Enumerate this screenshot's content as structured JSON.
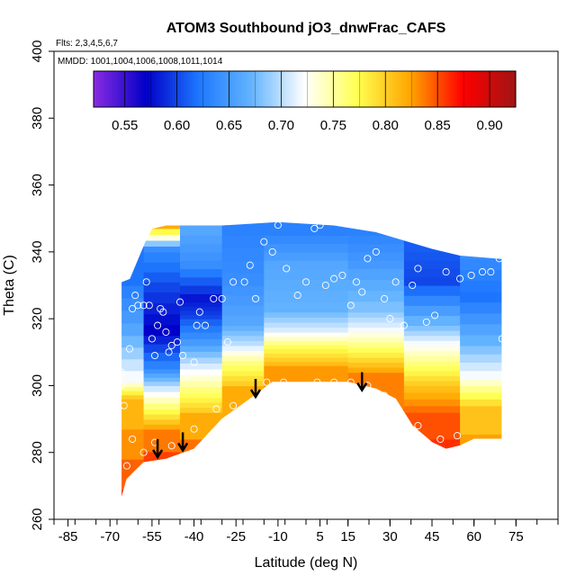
{
  "chart_data": {
    "type": "heatmap",
    "title": "ATOM3 Southbound jO3_dnwFrac_CAFS",
    "flights_note": "Flts: 2,3,4,5,6,7",
    "date_note": "MMDD: 1001,1004,1006,1008,1011,1014",
    "xlabel": "Latitude (deg N)",
    "ylabel": "Theta (C)",
    "xlim": [
      -90,
      90
    ],
    "ylim": [
      260,
      400
    ],
    "x_ticks": [
      -85,
      -70,
      -55,
      -40,
      -25,
      -10,
      5,
      15,
      30,
      45,
      60,
      75
    ],
    "x_tick_labels": [
      "-85",
      "-70",
      "-55",
      "-40",
      "-25",
      "-10",
      "5",
      "15",
      "30",
      "45",
      "60",
      "75"
    ],
    "y_ticks": [
      260,
      280,
      300,
      320,
      340,
      360,
      380,
      400
    ],
    "y_tick_labels": [
      "260",
      "280",
      "300",
      "320",
      "340",
      "360",
      "380",
      "400"
    ],
    "colorbar": {
      "range": [
        0.52,
        0.925
      ],
      "ticks": [
        0.55,
        0.6,
        0.65,
        0.7,
        0.75,
        0.8,
        0.85,
        0.9
      ],
      "tick_labels": [
        "0.55",
        "0.60",
        "0.65",
        "0.70",
        "0.75",
        "0.80",
        "0.85",
        "0.90"
      ],
      "colors": [
        "#8a2be2",
        "#0000c8",
        "#1e78ff",
        "#64b4ff",
        "#ffffff",
        "#ffff50",
        "#ffa500",
        "#ff0000",
        "#a01414"
      ]
    },
    "domain": {
      "top": [
        [
          -66,
          331
        ],
        [
          -63,
          332
        ],
        [
          -61,
          336
        ],
        [
          -57,
          344
        ],
        [
          -55,
          347
        ],
        [
          -50,
          348
        ],
        [
          -30,
          348
        ],
        [
          -10,
          349
        ],
        [
          10,
          348
        ],
        [
          25,
          346
        ],
        [
          45,
          341
        ],
        [
          55,
          339
        ],
        [
          70,
          338
        ]
      ],
      "bottom": [
        [
          -66,
          266
        ],
        [
          -64,
          272
        ],
        [
          -58,
          277
        ],
        [
          -50,
          278
        ],
        [
          -40,
          281
        ],
        [
          -30,
          290
        ],
        [
          -20,
          296
        ],
        [
          -12,
          301
        ],
        [
          0,
          301
        ],
        [
          15,
          301
        ],
        [
          25,
          299
        ],
        [
          32,
          296
        ],
        [
          38,
          288
        ],
        [
          45,
          283
        ],
        [
          50,
          281
        ],
        [
          55,
          282
        ],
        [
          60,
          284
        ],
        [
          70,
          284
        ]
      ]
    },
    "field_bands": [
      {
        "lat": [
          -66,
          -58
        ],
        "levels": [
          [
            290,
            0.86
          ],
          [
            296,
            0.8
          ],
          [
            301,
            0.72
          ],
          [
            315,
            0.66
          ],
          [
            330,
            0.62
          ]
        ]
      },
      {
        "lat": [
          -58,
          -45
        ],
        "levels": [
          [
            279,
            0.89
          ],
          [
            287,
            0.82
          ],
          [
            293,
            0.76
          ],
          [
            300,
            0.69
          ],
          [
            305,
            0.63
          ],
          [
            315,
            0.57
          ],
          [
            328,
            0.6
          ],
          [
            340,
            0.64
          ],
          [
            347,
            0.82
          ]
        ]
      },
      {
        "lat": [
          -45,
          -30
        ],
        "levels": [
          [
            282,
            0.88
          ],
          [
            292,
            0.8
          ],
          [
            298,
            0.76
          ],
          [
            305,
            0.71
          ],
          [
            312,
            0.65
          ],
          [
            320,
            0.6
          ],
          [
            325,
            0.58
          ],
          [
            335,
            0.64
          ],
          [
            345,
            0.66
          ]
        ]
      },
      {
        "lat": [
          -30,
          -15
        ],
        "levels": [
          [
            293,
            0.88
          ],
          [
            300,
            0.8
          ],
          [
            306,
            0.76
          ],
          [
            312,
            0.7
          ],
          [
            318,
            0.66
          ],
          [
            330,
            0.64
          ],
          [
            345,
            0.63
          ]
        ]
      },
      {
        "lat": [
          -15,
          15
        ],
        "levels": [
          [
            301,
            0.88
          ],
          [
            306,
            0.81
          ],
          [
            311,
            0.77
          ],
          [
            316,
            0.71
          ],
          [
            322,
            0.67
          ],
          [
            335,
            0.66
          ],
          [
            345,
            0.63
          ]
        ]
      },
      {
        "lat": [
          15,
          35
        ],
        "levels": [
          [
            297,
            0.88
          ],
          [
            304,
            0.82
          ],
          [
            310,
            0.77
          ],
          [
            316,
            0.72
          ],
          [
            322,
            0.68
          ],
          [
            335,
            0.65
          ],
          [
            345,
            0.63
          ]
        ]
      },
      {
        "lat": [
          35,
          55
        ],
        "levels": [
          [
            283,
            0.88
          ],
          [
            292,
            0.84
          ],
          [
            300,
            0.8
          ],
          [
            306,
            0.76
          ],
          [
            312,
            0.72
          ],
          [
            318,
            0.67
          ],
          [
            330,
            0.6
          ],
          [
            340,
            0.61
          ]
        ]
      },
      {
        "lat": [
          55,
          70
        ],
        "levels": [
          [
            285,
            0.86
          ],
          [
            294,
            0.79
          ],
          [
            302,
            0.72
          ],
          [
            312,
            0.67
          ],
          [
            325,
            0.62
          ],
          [
            338,
            0.64
          ]
        ]
      }
    ],
    "arrows": [
      [
        -53,
        284
      ],
      [
        -44,
        286
      ],
      [
        -18,
        302
      ],
      [
        20,
        304
      ]
    ],
    "samples": [
      [
        -66,
        300
      ],
      [
        -66,
        304
      ],
      [
        -65,
        294
      ],
      [
        -64,
        276
      ],
      [
        -63,
        311
      ],
      [
        -62,
        323
      ],
      [
        -61,
        327
      ],
      [
        -60,
        324
      ],
      [
        -58,
        324
      ],
      [
        -57,
        331
      ],
      [
        -56,
        324
      ],
      [
        -55,
        314
      ],
      [
        -54,
        309
      ],
      [
        -53,
        318
      ],
      [
        -52,
        323
      ],
      [
        -51,
        322
      ],
      [
        -50,
        316
      ],
      [
        -49,
        310
      ],
      [
        -48,
        312
      ],
      [
        -46,
        313
      ],
      [
        -45,
        325
      ],
      [
        -44,
        309
      ],
      [
        -42,
        303
      ],
      [
        -40,
        307
      ],
      [
        -39,
        318
      ],
      [
        -38,
        322
      ],
      [
        -36,
        318
      ],
      [
        -33,
        326
      ],
      [
        -30,
        326
      ],
      [
        -28,
        313
      ],
      [
        -26,
        331
      ],
      [
        -22,
        331
      ],
      [
        -20,
        336
      ],
      [
        -18,
        326
      ],
      [
        -15,
        343
      ],
      [
        -12,
        340
      ],
      [
        -10,
        348
      ],
      [
        -7,
        335
      ],
      [
        -3,
        327
      ],
      [
        0,
        331
      ],
      [
        3,
        347
      ],
      [
        5,
        348
      ],
      [
        7,
        330
      ],
      [
        10,
        332
      ],
      [
        13,
        333
      ],
      [
        16,
        324
      ],
      [
        18,
        331
      ],
      [
        20,
        328
      ],
      [
        22,
        338
      ],
      [
        25,
        340
      ],
      [
        28,
        326
      ],
      [
        30,
        320
      ],
      [
        32,
        331
      ],
      [
        35,
        318
      ],
      [
        38,
        330
      ],
      [
        40,
        335
      ],
      [
        43,
        319
      ],
      [
        46,
        321
      ],
      [
        50,
        334
      ],
      [
        55,
        332
      ],
      [
        59,
        333
      ],
      [
        63,
        334
      ],
      [
        66,
        334
      ],
      [
        69,
        338
      ],
      [
        -62,
        284
      ],
      [
        -58,
        280
      ],
      [
        -54,
        283
      ],
      [
        -48,
        282
      ],
      [
        -40,
        287
      ],
      [
        -32,
        293
      ],
      [
        -26,
        294
      ],
      [
        -14,
        301
      ],
      [
        -8,
        301
      ],
      [
        -2,
        300
      ],
      [
        4,
        301
      ],
      [
        10,
        301
      ],
      [
        16,
        301
      ],
      [
        22,
        300
      ],
      [
        28,
        297
      ],
      [
        33,
        291
      ],
      [
        40,
        288
      ],
      [
        48,
        284
      ],
      [
        54,
        285
      ],
      [
        70,
        314
      ]
    ]
  }
}
